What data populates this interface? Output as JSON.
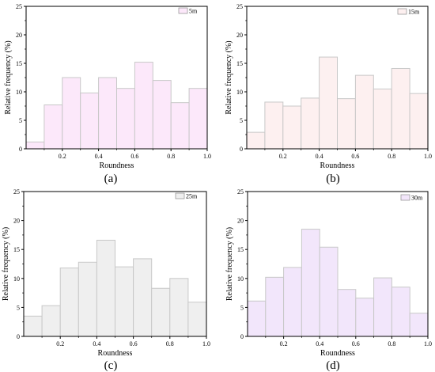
{
  "chart_data": [
    {
      "type": "bar",
      "caption": "(a)",
      "legend": "5m",
      "xlabel": "Roundness",
      "ylabel": "Relative frequency (%)",
      "xlim": [
        0,
        1.0
      ],
      "ylim": [
        0,
        25
      ],
      "xticks": [
        "0.2",
        "0.4",
        "0.6",
        "0.8",
        "1.0"
      ],
      "yticks": [
        "0",
        "5",
        "10",
        "15",
        "20",
        "25"
      ],
      "bin_edges": [
        0,
        0.1,
        0.2,
        0.3,
        0.4,
        0.5,
        0.6,
        0.7,
        0.8,
        0.9,
        1.0
      ],
      "values": [
        1.2,
        7.7,
        12.5,
        9.8,
        12.5,
        10.6,
        15.2,
        12.0,
        8.1,
        10.6
      ],
      "fill": "#fce8fa",
      "stroke": "#c8c8c8"
    },
    {
      "type": "bar",
      "caption": "(b)",
      "legend": "15m",
      "xlabel": "Roundness",
      "ylabel": "Relative frequency (%)",
      "xlim": [
        0,
        1.0
      ],
      "ylim": [
        0,
        25
      ],
      "xticks": [
        "0.2",
        "0.4",
        "0.6",
        "0.8",
        "1.0"
      ],
      "yticks": [
        "0",
        "5",
        "10",
        "15",
        "20",
        "25"
      ],
      "bin_edges": [
        0,
        0.1,
        0.2,
        0.3,
        0.4,
        0.5,
        0.6,
        0.7,
        0.8,
        0.9,
        1.0
      ],
      "values": [
        2.9,
        8.2,
        7.5,
        8.9,
        16.1,
        8.8,
        12.9,
        10.5,
        14.1,
        9.7
      ],
      "fill": "#fdf0f0",
      "stroke": "#c8c8c8"
    },
    {
      "type": "bar",
      "caption": "(c)",
      "legend": "25m",
      "xlabel": "Roundness",
      "ylabel": "Relative frequency (%)",
      "xlim": [
        0,
        1.0
      ],
      "ylim": [
        0,
        25
      ],
      "xticks": [
        "0.2",
        "0.4",
        "0.6",
        "0.8",
        "1.0"
      ],
      "yticks": [
        "0",
        "5",
        "10",
        "15",
        "20",
        "25"
      ],
      "bin_edges": [
        0,
        0.1,
        0.2,
        0.3,
        0.4,
        0.5,
        0.6,
        0.7,
        0.8,
        0.9,
        1.0
      ],
      "values": [
        3.5,
        5.3,
        11.8,
        12.8,
        16.6,
        12.0,
        13.4,
        8.3,
        10.0,
        5.9
      ],
      "fill": "#efefef",
      "stroke": "#c8c8c8"
    },
    {
      "type": "bar",
      "caption": "(d)",
      "legend": "30m",
      "xlabel": "Roundness",
      "ylabel": "Relative frequency (%)",
      "xlim": [
        0,
        1.0
      ],
      "ylim": [
        0,
        25
      ],
      "xticks": [
        "0.2",
        "0.4",
        "0.6",
        "0.8",
        "1.0"
      ],
      "yticks": [
        "0",
        "5",
        "10",
        "15",
        "20",
        "25"
      ],
      "bin_edges": [
        0,
        0.1,
        0.2,
        0.3,
        0.4,
        0.5,
        0.6,
        0.7,
        0.8,
        0.9,
        1.0
      ],
      "values": [
        6.1,
        10.2,
        11.9,
        18.5,
        15.4,
        8.1,
        6.6,
        10.1,
        8.5,
        4.0
      ],
      "fill": "#f2e6fb",
      "stroke": "#c8c8c8"
    }
  ]
}
